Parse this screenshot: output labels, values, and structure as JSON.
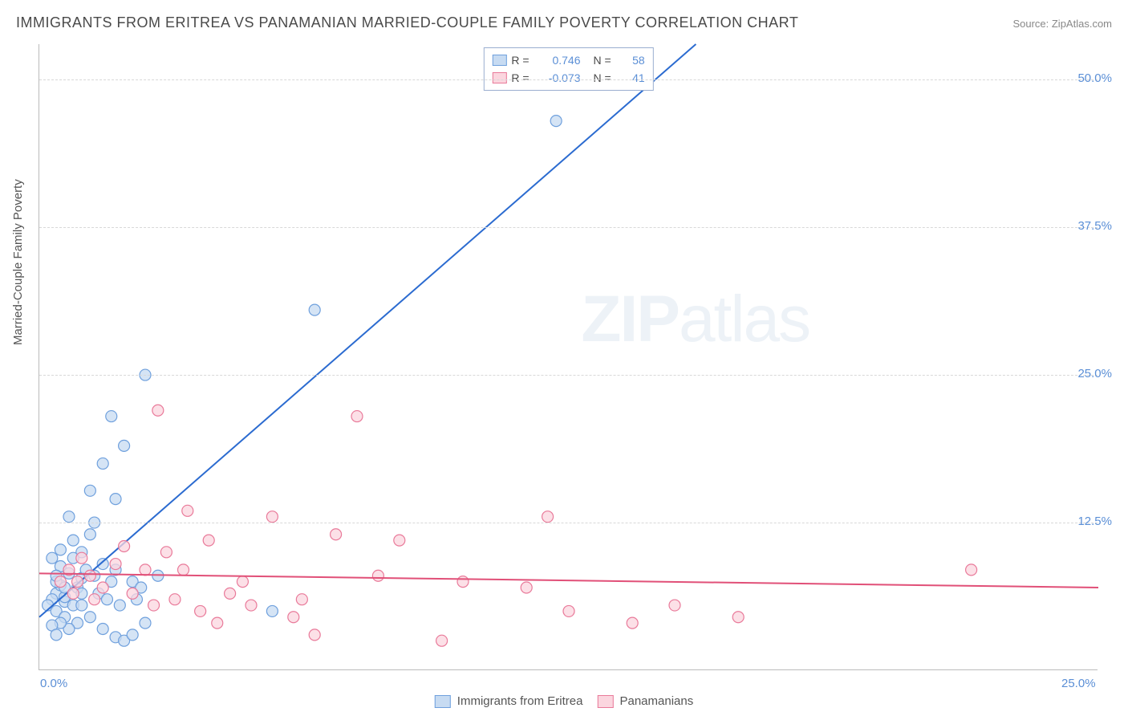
{
  "title": "IMMIGRANTS FROM ERITREA VS PANAMANIAN MARRIED-COUPLE FAMILY POVERTY CORRELATION CHART",
  "source": "Source: ZipAtlas.com",
  "watermark_bold": "ZIP",
  "watermark_light": "atlas",
  "y_axis_title": "Married-Couple Family Poverty",
  "chart": {
    "type": "scatter",
    "xlim": [
      0,
      25
    ],
    "ylim": [
      0,
      53
    ],
    "y_ticks": [
      {
        "value": 12.5,
        "label": "12.5%"
      },
      {
        "value": 25.0,
        "label": "25.0%"
      },
      {
        "value": 37.5,
        "label": "37.5%"
      },
      {
        "value": 50.0,
        "label": "50.0%"
      }
    ],
    "x_ticks": [
      {
        "value": 0,
        "label": "0.0%"
      },
      {
        "value": 25,
        "label": "25.0%"
      }
    ],
    "grid_color": "#d8d8d8",
    "axis_color": "#bbbbbb",
    "background_color": "#ffffff",
    "tick_label_color": "#5b8fd6",
    "marker_radius": 7,
    "marker_stroke_width": 1.2,
    "line_width": 2,
    "series": [
      {
        "name": "Immigrants from Eritrea",
        "key": "eritrea",
        "fill_color": "#c7dbf2",
        "stroke_color": "#6fa0dd",
        "line_color": "#2b6bd0",
        "r": 0.746,
        "n": 58,
        "trend": {
          "x0": 0,
          "y0": 4.5,
          "x1": 15.5,
          "y1": 53
        },
        "points": [
          [
            0.3,
            9.5
          ],
          [
            0.4,
            6.5
          ],
          [
            0.5,
            7.2
          ],
          [
            0.6,
            5.8
          ],
          [
            0.5,
            10.2
          ],
          [
            0.8,
            11.0
          ],
          [
            0.4,
            7.5
          ],
          [
            0.6,
            6.2
          ],
          [
            0.9,
            7.0
          ],
          [
            0.7,
            8.2
          ],
          [
            0.5,
            8.8
          ],
          [
            0.3,
            6.0
          ],
          [
            0.2,
            5.5
          ],
          [
            0.4,
            5.0
          ],
          [
            0.6,
            4.5
          ],
          [
            0.8,
            5.5
          ],
          [
            1.0,
            7.8
          ],
          [
            0.7,
            13.0
          ],
          [
            1.2,
            15.2
          ],
          [
            1.0,
            10.0
          ],
          [
            1.5,
            9.0
          ],
          [
            1.8,
            8.5
          ],
          [
            2.2,
            7.5
          ],
          [
            1.3,
            12.5
          ],
          [
            1.5,
            17.5
          ],
          [
            1.7,
            21.5
          ],
          [
            2.0,
            19.0
          ],
          [
            2.5,
            25.0
          ],
          [
            1.8,
            14.5
          ],
          [
            1.0,
            5.5
          ],
          [
            1.4,
            6.5
          ],
          [
            0.9,
            4.0
          ],
          [
            0.7,
            3.5
          ],
          [
            0.5,
            4.0
          ],
          [
            0.3,
            3.8
          ],
          [
            0.4,
            3.0
          ],
          [
            1.2,
            4.5
          ],
          [
            1.5,
            3.5
          ],
          [
            1.8,
            2.8
          ],
          [
            2.0,
            2.5
          ],
          [
            2.2,
            3.0
          ],
          [
            2.5,
            4.0
          ],
          [
            2.3,
            6.0
          ],
          [
            2.8,
            8.0
          ],
          [
            1.7,
            7.5
          ],
          [
            1.3,
            8.0
          ],
          [
            1.0,
            6.5
          ],
          [
            5.5,
            5.0
          ],
          [
            6.5,
            30.5
          ],
          [
            12.2,
            46.5
          ],
          [
            1.1,
            8.5
          ],
          [
            0.8,
            9.5
          ],
          [
            0.6,
            7.0
          ],
          [
            0.4,
            8.0
          ],
          [
            1.6,
            6.0
          ],
          [
            1.9,
            5.5
          ],
          [
            2.4,
            7.0
          ],
          [
            1.2,
            11.5
          ]
        ]
      },
      {
        "name": "Panamanians",
        "key": "panamanians",
        "fill_color": "#fbd6df",
        "stroke_color": "#e97a9a",
        "line_color": "#e15078",
        "r": -0.073,
        "n": 41,
        "trend": {
          "x0": 0,
          "y0": 8.2,
          "x1": 25,
          "y1": 7.0
        },
        "points": [
          [
            0.5,
            7.5
          ],
          [
            0.8,
            6.5
          ],
          [
            1.2,
            8.0
          ],
          [
            1.5,
            7.0
          ],
          [
            2.0,
            10.5
          ],
          [
            2.5,
            8.5
          ],
          [
            2.8,
            22.0
          ],
          [
            3.0,
            10.0
          ],
          [
            3.5,
            13.5
          ],
          [
            4.0,
            11.0
          ],
          [
            5.0,
            5.5
          ],
          [
            5.5,
            13.0
          ],
          [
            3.2,
            6.0
          ],
          [
            3.8,
            5.0
          ],
          [
            4.5,
            6.5
          ],
          [
            6.0,
            4.5
          ],
          [
            7.0,
            11.5
          ],
          [
            7.5,
            21.5
          ],
          [
            8.0,
            8.0
          ],
          [
            8.5,
            11.0
          ],
          [
            9.5,
            2.5
          ],
          [
            10.0,
            7.5
          ],
          [
            6.5,
            3.0
          ],
          [
            11.5,
            7.0
          ],
          [
            12.0,
            13.0
          ],
          [
            12.5,
            5.0
          ],
          [
            14.0,
            4.0
          ],
          [
            15.0,
            5.5
          ],
          [
            16.5,
            4.5
          ],
          [
            22.0,
            8.5
          ],
          [
            1.8,
            9.0
          ],
          [
            2.2,
            6.5
          ],
          [
            1.0,
            9.5
          ],
          [
            1.3,
            6.0
          ],
          [
            0.7,
            8.5
          ],
          [
            0.9,
            7.5
          ],
          [
            4.2,
            4.0
          ],
          [
            4.8,
            7.5
          ],
          [
            6.2,
            6.0
          ],
          [
            3.4,
            8.5
          ],
          [
            2.7,
            5.5
          ]
        ]
      }
    ]
  },
  "legend_labels": {
    "r_prefix": "R =",
    "n_prefix": "N ="
  },
  "footer_legend": [
    {
      "key": "eritrea",
      "label": "Immigrants from Eritrea"
    },
    {
      "key": "panamanians",
      "label": "Panamanians"
    }
  ]
}
